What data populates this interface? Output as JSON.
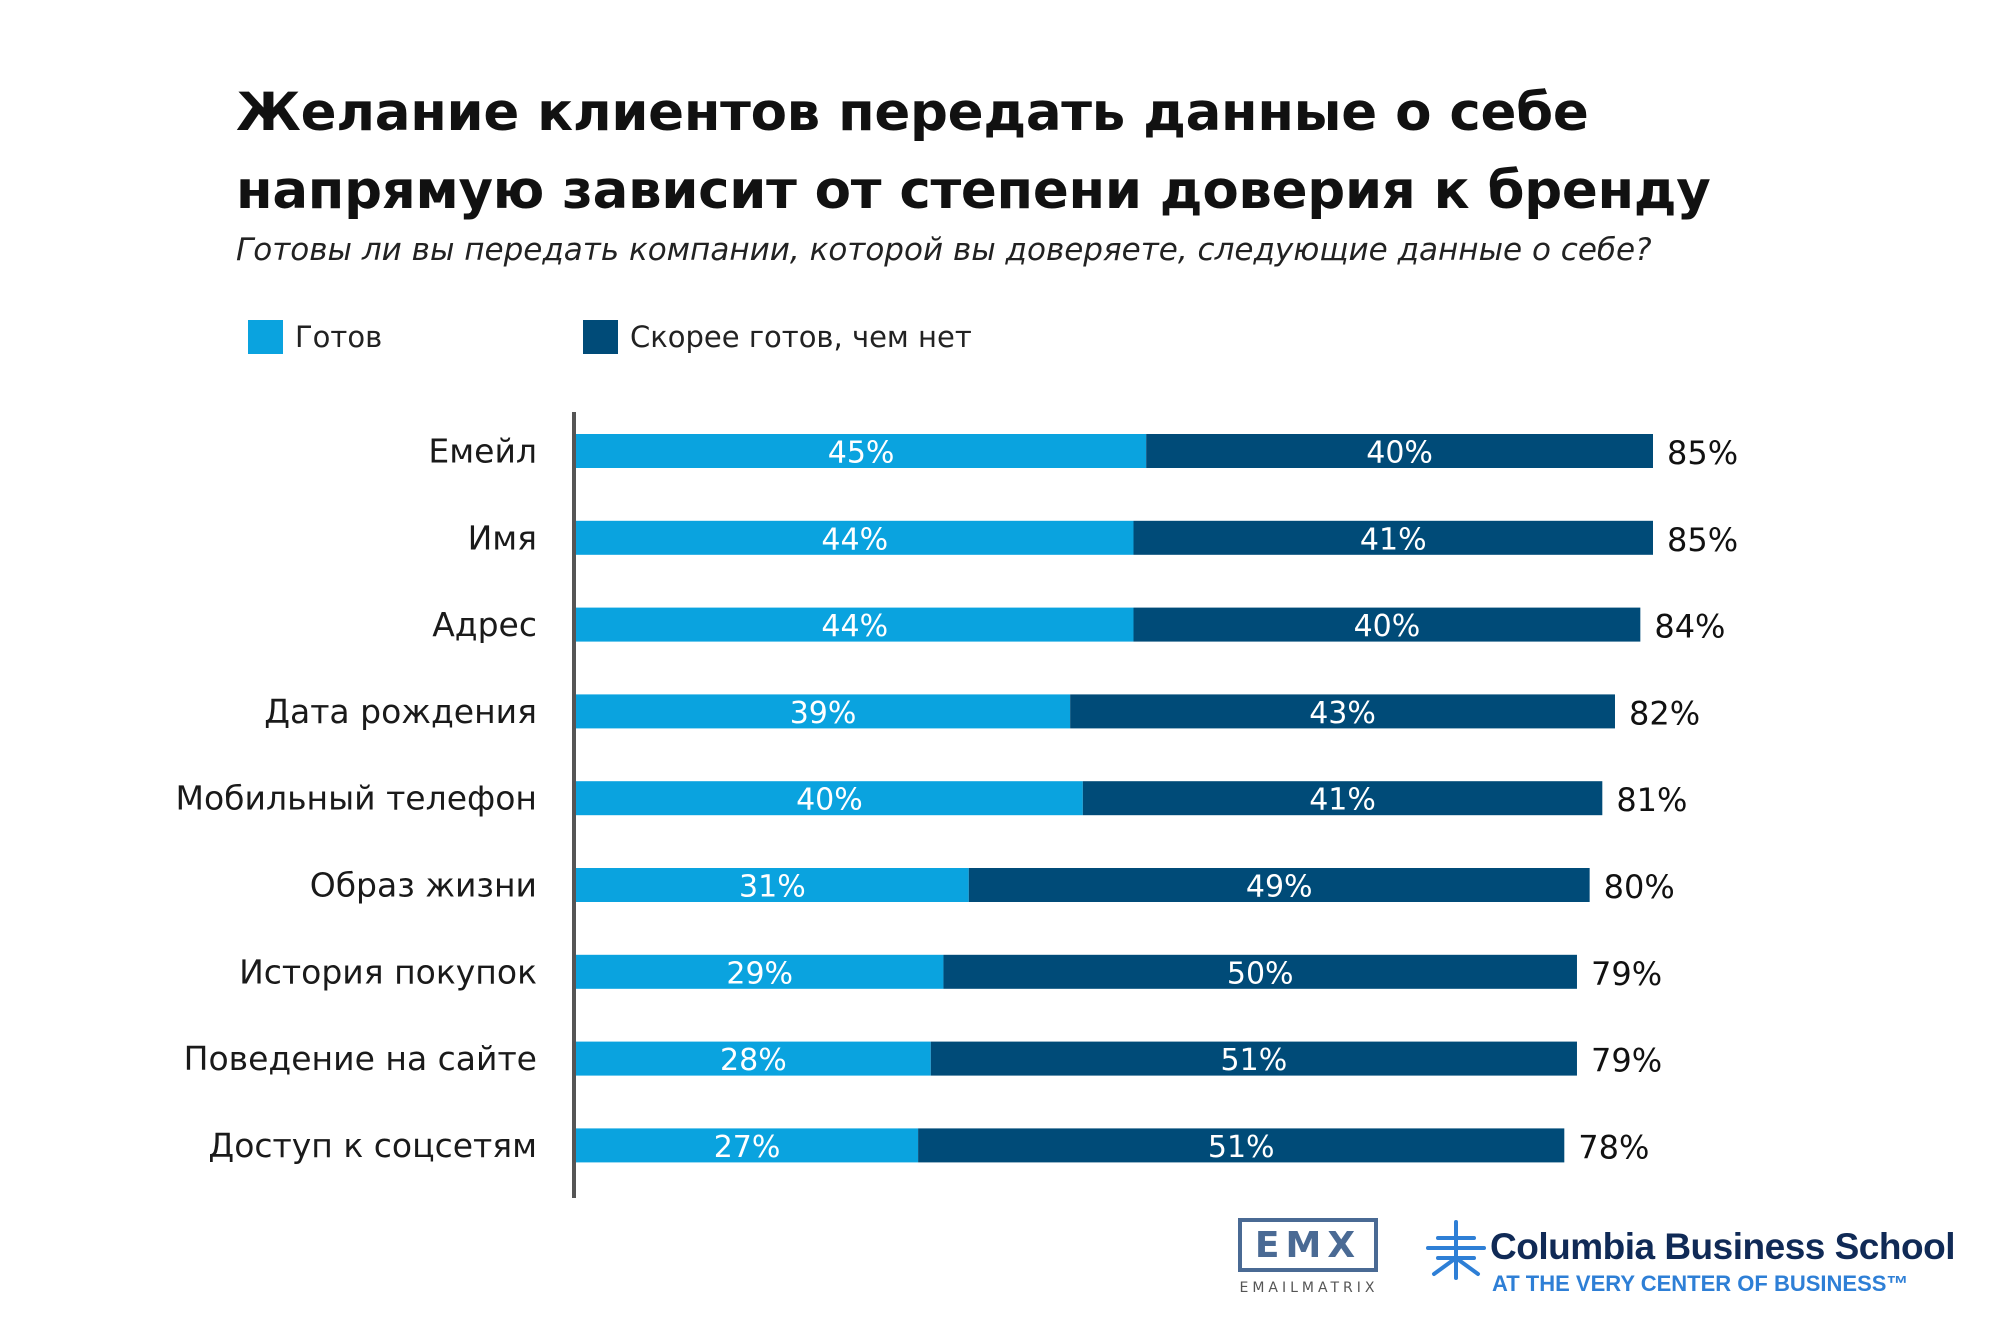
{
  "title": "Желание клиентов передать данные о себе напрямую зависит от степени доверия к бренду",
  "subtitle": "Готовы ли вы передать компании, которой вы доверяете, следующие данные о себе?",
  "colors": {
    "ready": "#0aa3df",
    "rather_ready": "#004b78",
    "axis": "#555555"
  },
  "logos": {
    "emx_mark": "EMX",
    "emx_name": "EMAILMATRIX",
    "cbs_name": "Columbia Business School",
    "cbs_tagline": "AT THE VERY CENTER OF BUSINESS™"
  },
  "chart_data": {
    "type": "bar",
    "orientation": "horizontal",
    "stacked": true,
    "categories": [
      "Емейл",
      "Имя",
      "Адрес",
      "Дата рождения",
      "Мобильный телефон",
      "Образ жизни",
      "История покупок",
      "Поведение на сайте",
      "Доступ к соцсетям"
    ],
    "series": [
      {
        "name": "Готов",
        "values": [
          45,
          44,
          44,
          39,
          40,
          31,
          29,
          28,
          27
        ],
        "labels": [
          "45%",
          "44%",
          "44%",
          "39%",
          "40%",
          "31%",
          "29%",
          "28%",
          "27%"
        ]
      },
      {
        "name": "Скорее готов, чем нет",
        "values": [
          40,
          41,
          40,
          43,
          41,
          49,
          50,
          51,
          51
        ],
        "labels": [
          "40%",
          "41%",
          "40%",
          "43%",
          "41%",
          "49%",
          "50%",
          "51%",
          "51%"
        ]
      }
    ],
    "totals": [
      85,
      85,
      84,
      82,
      81,
      80,
      79,
      79,
      78
    ],
    "total_labels": [
      "85%",
      "85%",
      "84%",
      "82%",
      "81%",
      "80%",
      "79%",
      "79%",
      "78%"
    ],
    "xlim": [
      0,
      85
    ],
    "grid": false,
    "legend_position": "top-left"
  }
}
